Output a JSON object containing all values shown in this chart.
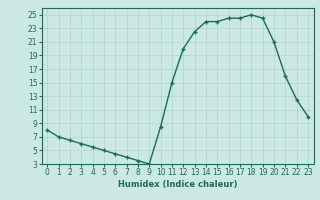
{
  "x": [
    0,
    1,
    2,
    3,
    4,
    5,
    6,
    7,
    8,
    9,
    10,
    11,
    12,
    13,
    14,
    15,
    16,
    17,
    18,
    19,
    20,
    21,
    22,
    23
  ],
  "y": [
    8,
    7,
    6.5,
    6,
    5.5,
    5,
    4.5,
    4,
    3.5,
    3,
    8.5,
    15,
    20,
    22.5,
    24,
    24,
    24.5,
    24.5,
    25,
    24.5,
    21,
    16,
    12.5,
    10
  ],
  "xlabel": "Humidex (Indice chaleur)",
  "line_color": "#1a6b5a",
  "marker": "+",
  "bg_color": "#cce8e4",
  "grid_color": "#b0d4cf",
  "text_color": "#1a6b5a",
  "ylim": [
    3,
    26
  ],
  "xlim": [
    -0.5,
    23.5
  ],
  "yticks": [
    3,
    5,
    7,
    9,
    11,
    13,
    15,
    17,
    19,
    21,
    23,
    25
  ],
  "xticks": [
    0,
    1,
    2,
    3,
    4,
    5,
    6,
    7,
    8,
    9,
    10,
    11,
    12,
    13,
    14,
    15,
    16,
    17,
    18,
    19,
    20,
    21,
    22,
    23
  ],
  "xlabel_fontsize": 6,
  "tick_fontsize": 5.5,
  "linewidth": 1.0,
  "markersize": 3.5,
  "markeredgewidth": 1.0
}
